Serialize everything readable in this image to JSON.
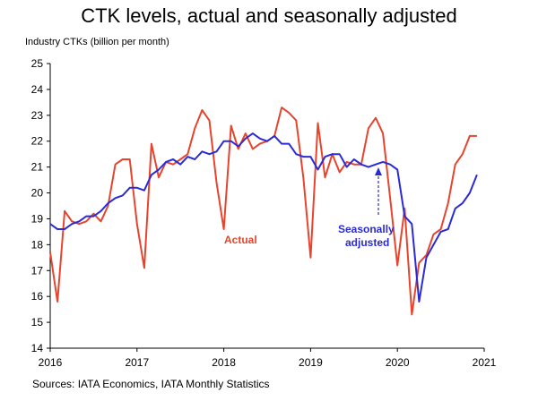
{
  "title": "CTK levels, actual and seasonally adjusted",
  "source": "Sources: IATA Economics, IATA Monthly Statistics",
  "chart_data": {
    "type": "line",
    "title": "CTK levels, actual and seasonally adjusted",
    "ylabel": "Industry CTKs (billion per month)",
    "xlabel": "",
    "ylim": [
      14,
      25
    ],
    "xlim": [
      2016,
      2021
    ],
    "yticks": [
      14,
      15,
      16,
      17,
      18,
      19,
      20,
      21,
      22,
      23,
      24,
      25
    ],
    "xticks": [
      "2016",
      "2017",
      "2018",
      "2019",
      "2020",
      "2021"
    ],
    "grid": false,
    "x": [
      2016.0,
      2016.0833,
      2016.1667,
      2016.25,
      2016.3333,
      2016.4167,
      2016.5,
      2016.5833,
      2016.6667,
      2016.75,
      2016.8333,
      2016.9167,
      2017.0,
      2017.0833,
      2017.1667,
      2017.25,
      2017.3333,
      2017.4167,
      2017.5,
      2017.5833,
      2017.6667,
      2017.75,
      2017.8333,
      2017.9167,
      2018.0,
      2018.0833,
      2018.1667,
      2018.25,
      2018.3333,
      2018.4167,
      2018.5,
      2018.5833,
      2018.6667,
      2018.75,
      2018.8333,
      2018.9167,
      2019.0,
      2019.0833,
      2019.1667,
      2019.25,
      2019.3333,
      2019.4167,
      2019.5,
      2019.5833,
      2019.6667,
      2019.75,
      2019.8333,
      2019.9167,
      2020.0,
      2020.0833,
      2020.1667,
      2020.25,
      2020.3333,
      2020.4167,
      2020.5,
      2020.5833,
      2020.6667,
      2020.75,
      2020.8333,
      2020.9167
    ],
    "series": [
      {
        "name": "Actual",
        "color": "#e8442d",
        "values": [
          17.7,
          15.8,
          19.3,
          18.9,
          18.8,
          18.9,
          19.2,
          18.9,
          19.5,
          21.1,
          21.3,
          21.3,
          18.8,
          17.1,
          21.9,
          20.6,
          21.2,
          21.1,
          21.3,
          21.5,
          22.5,
          23.2,
          22.8,
          20.4,
          18.6,
          22.6,
          21.7,
          22.3,
          21.7,
          21.9,
          22.0,
          22.2,
          23.3,
          23.1,
          22.8,
          20.6,
          17.5,
          22.7,
          20.6,
          21.5,
          20.8,
          21.2,
          21.1,
          21.1,
          22.5,
          22.9,
          22.3,
          19.8,
          17.2,
          19.4,
          15.3,
          17.3,
          17.6,
          18.4,
          18.6,
          19.6,
          21.1,
          21.5,
          22.2,
          22.2
        ]
      },
      {
        "name": "Seasonally adjusted",
        "color": "#2b2bd6",
        "values": [
          18.8,
          18.6,
          18.6,
          18.8,
          18.9,
          19.1,
          19.1,
          19.3,
          19.6,
          19.8,
          19.9,
          20.2,
          20.2,
          20.1,
          20.7,
          20.9,
          21.2,
          21.3,
          21.1,
          21.4,
          21.3,
          21.6,
          21.5,
          21.6,
          22.0,
          22.0,
          21.8,
          22.1,
          22.3,
          22.1,
          22.0,
          22.2,
          21.9,
          21.9,
          21.5,
          21.4,
          21.4,
          20.9,
          21.4,
          21.5,
          21.5,
          21.0,
          21.3,
          21.1,
          21.0,
          21.1,
          21.2,
          21.1,
          20.9,
          19.1,
          18.8,
          15.8,
          17.5,
          18.0,
          18.5,
          18.6,
          19.4,
          19.6,
          20.0,
          20.7
        ]
      }
    ],
    "annotations": [
      "Actual",
      "Seasonally",
      "adjusted"
    ]
  }
}
